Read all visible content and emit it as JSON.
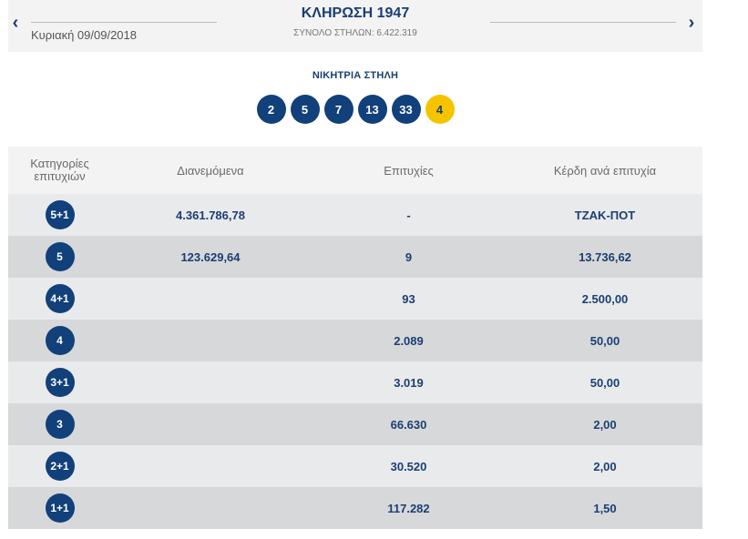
{
  "header": {
    "prev_arrow": "‹",
    "next_arrow": "›",
    "date": "Κυριακή 09/09/2018",
    "title": "ΚΛΗΡΩΣΗ 1947",
    "total_columns": "ΣΥΝΟΛΟ ΣΤΗΛΩΝ: 6.422.319"
  },
  "winning": {
    "label": "ΝΙΚΗΤΡΙΑ ΣΤΗΛΗ",
    "numbers": [
      "2",
      "5",
      "7",
      "13",
      "33"
    ],
    "joker": "4"
  },
  "table": {
    "headers": {
      "category_line1": "Κατηγορίες",
      "category_line2": "επιτυχιών",
      "distributed": "Διανεμόμενα",
      "winners": "Επιτυχίες",
      "prize": "Κέρδη ανά επιτυχία"
    },
    "rows": [
      {
        "category": "5+1",
        "distributed": "4.361.786,78",
        "winners": "-",
        "prize": "ΤΖΑΚ-ΠΟΤ"
      },
      {
        "category": "5",
        "distributed": "123.629,64",
        "winners": "9",
        "prize": "13.736,62"
      },
      {
        "category": "4+1",
        "distributed": "",
        "winners": "93",
        "prize": "2.500,00"
      },
      {
        "category": "4",
        "distributed": "",
        "winners": "2.089",
        "prize": "50,00"
      },
      {
        "category": "3+1",
        "distributed": "",
        "winners": "3.019",
        "prize": "50,00"
      },
      {
        "category": "3",
        "distributed": "",
        "winners": "66.630",
        "prize": "2,00"
      },
      {
        "category": "2+1",
        "distributed": "",
        "winners": "30.520",
        "prize": "2,00"
      },
      {
        "category": "1+1",
        "distributed": "",
        "winners": "117.282",
        "prize": "1,50"
      }
    ]
  },
  "colors": {
    "brand_blue": "#11407a",
    "joker_yellow": "#f5c400"
  }
}
